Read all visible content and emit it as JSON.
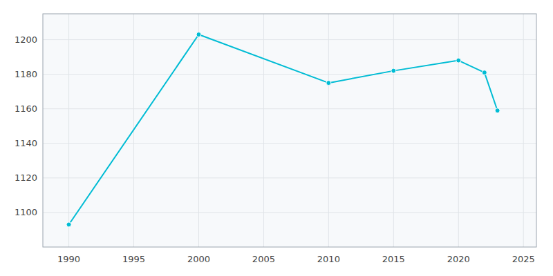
{
  "chart_data": {
    "type": "line",
    "x": [
      1990,
      2000,
      2010,
      2015,
      2020,
      2022,
      2023
    ],
    "values": [
      1093,
      1203,
      1175,
      1182,
      1188,
      1181,
      1159
    ],
    "color": "#00bcd4",
    "marker": "circle",
    "xlim": [
      1988,
      2026
    ],
    "ylim": [
      1080,
      1215
    ],
    "xticks": [
      1990,
      1995,
      2000,
      2005,
      2010,
      2015,
      2020,
      2025
    ],
    "yticks": [
      1100,
      1120,
      1140,
      1160,
      1180,
      1200
    ],
    "grid": true
  }
}
